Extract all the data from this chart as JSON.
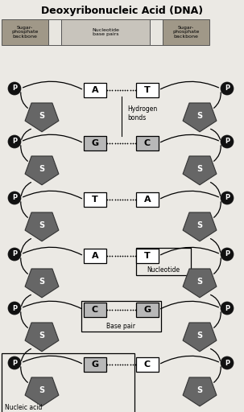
{
  "title": "Deoxyribonucleic Acid (DNA)",
  "bg_color": "#ebe9e4",
  "header_dark_color": "#a09888",
  "header_light_color": "#c8c4bc",
  "header_white_color": "#e8e6e0",
  "pentagon_fill": "#6a6a6a",
  "pentagon_edge": "#333333",
  "p_circle_color": "#111111",
  "base_pairs": [
    {
      "left": "A",
      "right": "T",
      "left_shaded": false,
      "right_shaded": false
    },
    {
      "left": "G",
      "right": "C",
      "left_shaded": true,
      "right_shaded": true
    },
    {
      "left": "T",
      "right": "A",
      "left_shaded": false,
      "right_shaded": false
    },
    {
      "left": "A",
      "right": "T",
      "left_shaded": false,
      "right_shaded": false,
      "nucleotide_box": true
    },
    {
      "left": "C",
      "right": "G",
      "left_shaded": true,
      "right_shaded": true,
      "base_pair_box": true
    },
    {
      "left": "G",
      "right": "C",
      "left_shaded": true,
      "right_shaded": false,
      "nucleic_acid_box": true
    }
  ],
  "nucleotide_label": "Nucleotide",
  "base_pair_label": "Base pair",
  "nucleic_acid_label": "Nucleic acid",
  "hydrogen_label": "Hydrogen\nbonds"
}
